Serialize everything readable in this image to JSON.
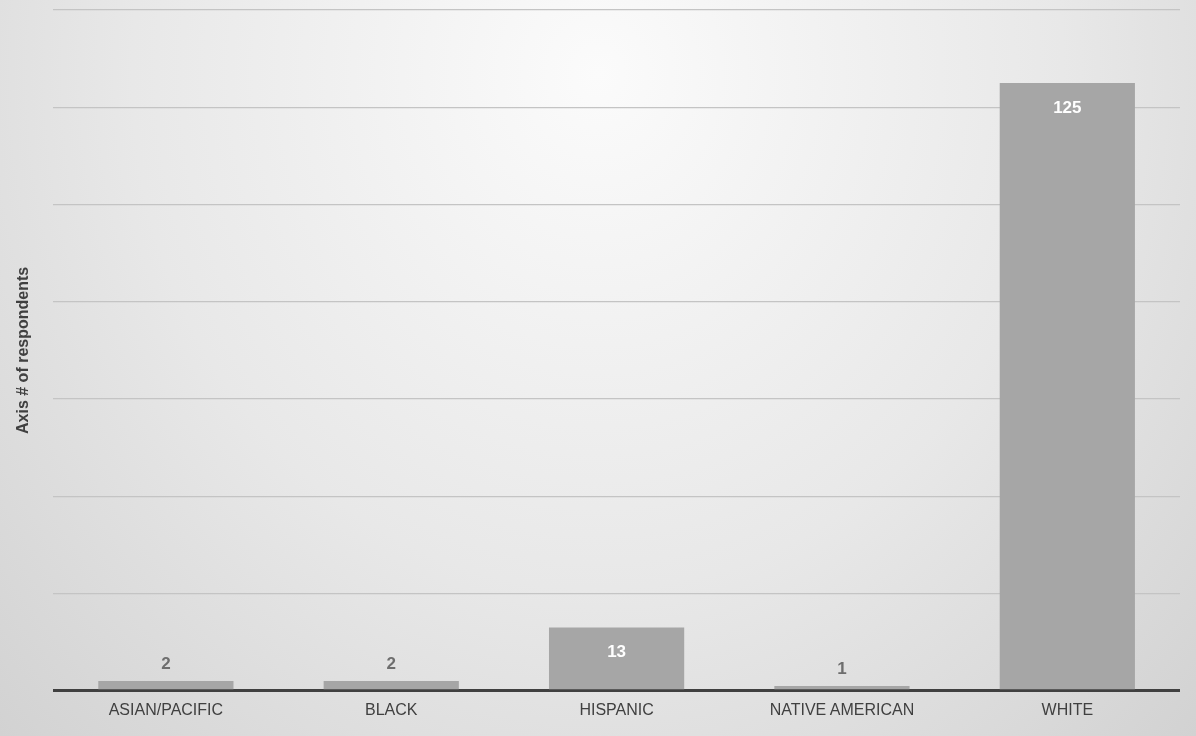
{
  "chart_data": {
    "type": "bar",
    "ylabel": "Axis # of respondents",
    "categories": [
      "ASIAN/PACIFIC",
      "BLACK",
      "HISPANIC",
      "NATIVE AMERICAN",
      "WHITE"
    ],
    "values": [
      2,
      2,
      13,
      1,
      125
    ],
    "color": "#a6a6a6",
    "grid": "y",
    "data_labels": true,
    "legend": false,
    "tick_labels": "x"
  }
}
